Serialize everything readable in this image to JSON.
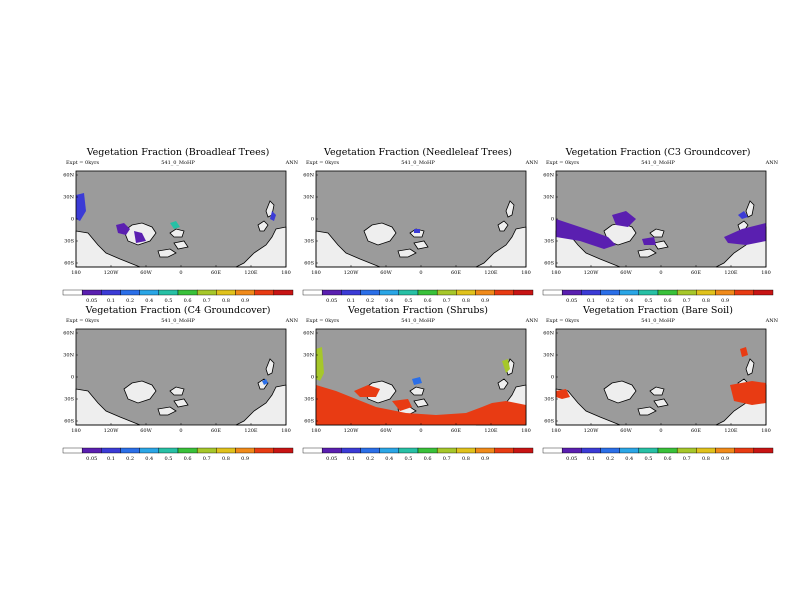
{
  "colors": {
    "ocean": "#9b9b9b",
    "land": "#eeeeee",
    "coast": "#000000",
    "scale": [
      "#ffffff",
      "#5a1fb0",
      "#3b3bd6",
      "#2b6fe8",
      "#2aa6e6",
      "#27c0a5",
      "#39c13a",
      "#a6c72a",
      "#e0c21c",
      "#f08a1a",
      "#e83b13",
      "#c81414"
    ]
  },
  "axes": {
    "lat_ticks": [
      "60N",
      "30N",
      "0",
      "30S",
      "60S"
    ],
    "lon_ticks": [
      "180",
      "120W",
      "60W",
      "0",
      "60E",
      "120E",
      "180"
    ]
  },
  "colorbar": {
    "labels": [
      "0.05",
      "0.1",
      "0.2",
      "0.4",
      "0.5",
      "0.6",
      "0.7",
      "0.8",
      "0.9"
    ]
  },
  "panels": [
    {
      "title": "Vegetation Fraction (Broadleaf Trees)",
      "expt": "Expt = 0kyrs",
      "run": "541_0_MoHP",
      "period": "ANN"
    },
    {
      "title": "Vegetation Fraction (Needleleaf Trees)",
      "expt": "Expt = 0kyrs",
      "run": "541_0_MoHP",
      "period": "ANN"
    },
    {
      "title": "Vegetation Fraction (C3 Groundcover)",
      "expt": "Expt = 0kyrs",
      "run": "541_0_MoHP",
      "period": "ANN"
    },
    {
      "title": "Vegetation Fraction (C4 Groundcover)",
      "expt": "Expt = 0kyrs",
      "run": "541_0_MoHP",
      "period": "ANN"
    },
    {
      "title": "Vegetation Fraction (Shrubs)",
      "expt": "Expt = 0kyrs",
      "run": "541_0_MoHP",
      "period": "ANN"
    },
    {
      "title": "Vegetation Fraction (Bare Soil)",
      "expt": "Expt = 0kyrs",
      "run": "541_0_MoHP",
      "period": "ANN"
    }
  ]
}
